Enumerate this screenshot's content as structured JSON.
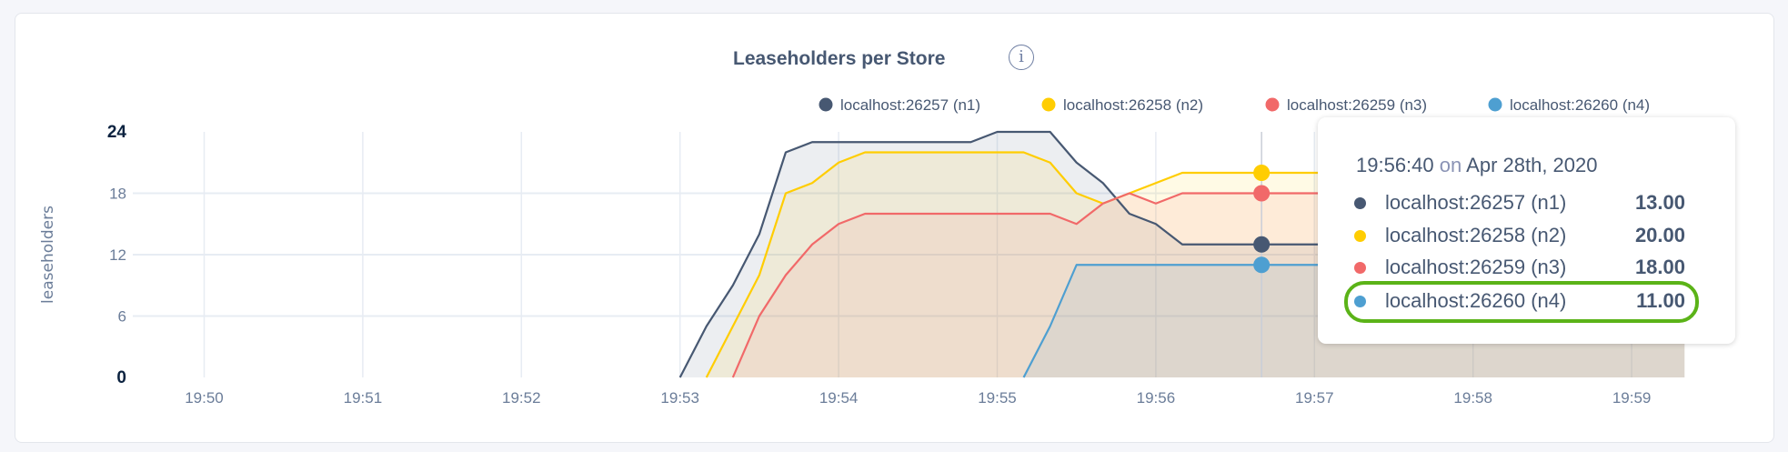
{
  "chart_data": {
    "type": "area",
    "title": "Leaseholders per Store",
    "ylabel": "leaseholders",
    "xlabel": "",
    "ylim": [
      0,
      24
    ],
    "yticks": [
      "0",
      "6",
      "12",
      "18",
      "24"
    ],
    "xlim": [
      "19:49:40",
      "19:59:20"
    ],
    "xticks": [
      "19:50",
      "19:51",
      "19:52",
      "19:53",
      "19:54",
      "19:55",
      "19:56",
      "19:57",
      "19:58",
      "19:59"
    ],
    "grid": true,
    "legend_position": "top-right",
    "series": [
      {
        "name": "localhost:26257 (n1)",
        "color": "#475872",
        "points": [
          [
            "19:53:00",
            0
          ],
          [
            "19:53:10",
            5
          ],
          [
            "19:53:20",
            9
          ],
          [
            "19:53:30",
            14
          ],
          [
            "19:53:40",
            22
          ],
          [
            "19:53:50",
            23
          ],
          [
            "19:54:00",
            23
          ],
          [
            "19:54:10",
            23
          ],
          [
            "19:54:20",
            23
          ],
          [
            "19:54:30",
            23
          ],
          [
            "19:54:40",
            23
          ],
          [
            "19:54:50",
            23
          ],
          [
            "19:55:00",
            24
          ],
          [
            "19:55:10",
            24
          ],
          [
            "19:55:20",
            24
          ],
          [
            "19:55:30",
            21
          ],
          [
            "19:55:40",
            19
          ],
          [
            "19:55:50",
            16
          ],
          [
            "19:56:00",
            15
          ],
          [
            "19:56:10",
            13
          ],
          [
            "19:56:40",
            13
          ],
          [
            "19:57:00",
            13
          ],
          [
            "19:58:00",
            13
          ],
          [
            "19:59:00",
            13
          ],
          [
            "19:59:20",
            13
          ]
        ]
      },
      {
        "name": "localhost:26258 (n2)",
        "color": "#ffcd02",
        "points": [
          [
            "19:53:10",
            0
          ],
          [
            "19:53:20",
            5
          ],
          [
            "19:53:30",
            10
          ],
          [
            "19:53:40",
            18
          ],
          [
            "19:53:50",
            19
          ],
          [
            "19:54:00",
            21
          ],
          [
            "19:54:10",
            22
          ],
          [
            "19:54:20",
            22
          ],
          [
            "19:54:30",
            22
          ],
          [
            "19:54:40",
            22
          ],
          [
            "19:54:50",
            22
          ],
          [
            "19:55:00",
            22
          ],
          [
            "19:55:10",
            22
          ],
          [
            "19:55:20",
            21
          ],
          [
            "19:55:30",
            18
          ],
          [
            "19:55:40",
            17
          ],
          [
            "19:55:50",
            18
          ],
          [
            "19:56:00",
            19
          ],
          [
            "19:56:10",
            20
          ],
          [
            "19:56:40",
            20
          ],
          [
            "19:57:00",
            20
          ],
          [
            "19:58:00",
            20
          ],
          [
            "19:59:00",
            20
          ],
          [
            "19:59:20",
            20
          ]
        ]
      },
      {
        "name": "localhost:26259 (n3)",
        "color": "#f16969",
        "points": [
          [
            "19:53:20",
            0
          ],
          [
            "19:53:30",
            6
          ],
          [
            "19:53:40",
            10
          ],
          [
            "19:53:50",
            13
          ],
          [
            "19:54:00",
            15
          ],
          [
            "19:54:10",
            16
          ],
          [
            "19:54:20",
            16
          ],
          [
            "19:54:30",
            16
          ],
          [
            "19:54:40",
            16
          ],
          [
            "19:54:50",
            16
          ],
          [
            "19:55:00",
            16
          ],
          [
            "19:55:10",
            16
          ],
          [
            "19:55:20",
            16
          ],
          [
            "19:55:30",
            15
          ],
          [
            "19:55:40",
            17
          ],
          [
            "19:55:50",
            18
          ],
          [
            "19:56:00",
            17
          ],
          [
            "19:56:10",
            18
          ],
          [
            "19:56:40",
            18
          ],
          [
            "19:57:00",
            18
          ],
          [
            "19:58:00",
            18
          ],
          [
            "19:59:00",
            18
          ],
          [
            "19:59:20",
            18
          ]
        ]
      },
      {
        "name": "localhost:26260 (n4)",
        "color": "#4e9fd1",
        "points": [
          [
            "19:55:10",
            0
          ],
          [
            "19:55:20",
            5
          ],
          [
            "19:55:30",
            11
          ],
          [
            "19:56:40",
            11
          ],
          [
            "19:57:00",
            11
          ],
          [
            "19:58:00",
            11
          ],
          [
            "19:59:00",
            11
          ],
          [
            "19:59:20",
            11
          ]
        ]
      }
    ],
    "hover": {
      "time": "19:56:40",
      "on": "on",
      "date": "Apr 28th, 2020",
      "values": [
        "13.00",
        "20.00",
        "18.00",
        "11.00"
      ],
      "highlighted_series": "localhost:26260 (n4)"
    }
  },
  "colors": {
    "highlight": "#5bb318"
  },
  "icons": {
    "info": "info-icon"
  }
}
